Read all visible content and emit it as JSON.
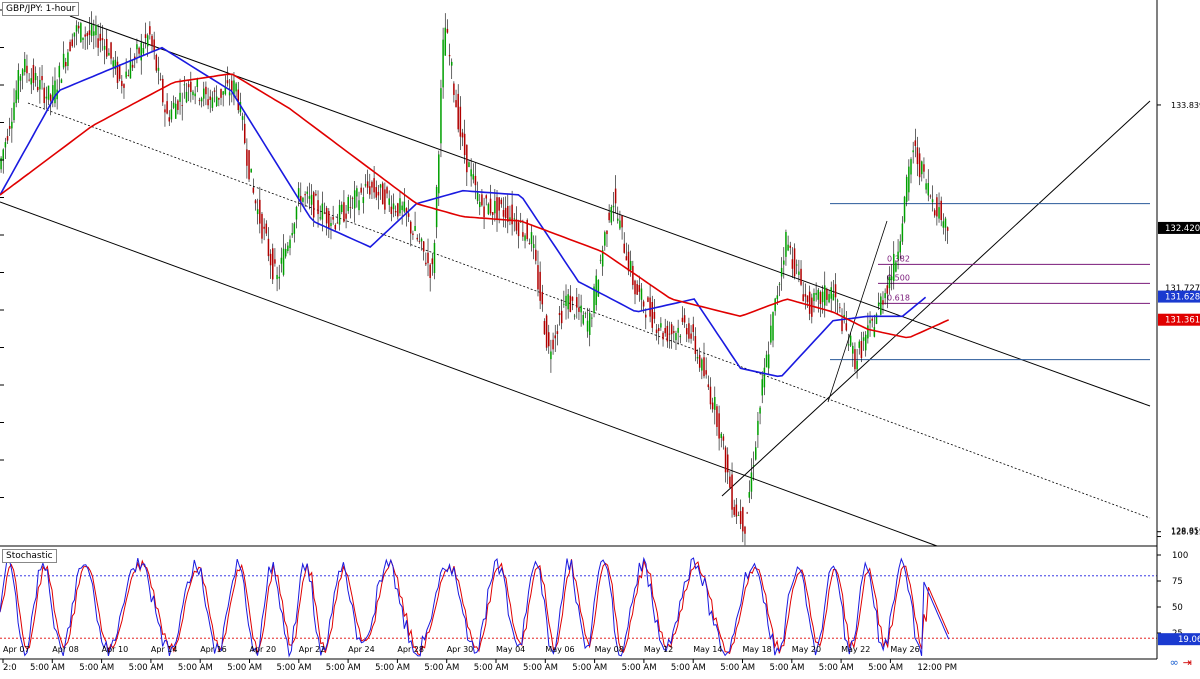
{
  "window": {
    "title": "GBP/JPY: 1-hour"
  },
  "oscillator": {
    "title": "Stochastic"
  },
  "colors": {
    "up": "#00a000",
    "down": "#b00000",
    "sma_blue": "#1a1ae0",
    "sma_red": "#e00000",
    "stoch_k": "#1a1ae0",
    "stoch_d": "#e00000",
    "fib": "#7a1a7a",
    "hline": "#2a5a9a",
    "tag_dark": "#000000",
    "tag_blue": "#1a3ad0",
    "tag_red": "#e00000"
  },
  "chart_data": [
    {
      "type": "candlestick",
      "title": "GBP/JPY: 1-hour",
      "ylim": [
        128.75,
        135.05
      ],
      "y_ticks": [
        "133.839",
        "128.915",
        "128.859"
      ],
      "price_tags": [
        {
          "label": "132.420",
          "value": 132.42,
          "style": "dark"
        },
        {
          "label": "131.727",
          "value": 131.727,
          "style": "plain"
        },
        {
          "label": "131.628",
          "value": 131.628,
          "style": "blue"
        },
        {
          "label": "131.361",
          "value": 131.361,
          "style": "red"
        }
      ],
      "x_ticks": [
        "Apr 07",
        "Apr 08",
        "Apr 10",
        "Apr 14",
        "Apr 16",
        "Apr 20",
        "Apr 22",
        "Apr 24",
        "Apr 28",
        "Apr 30",
        "May 04",
        "May 06",
        "May 08",
        "May 12",
        "May 14",
        "May 18",
        "May 20",
        "May 22",
        "May 26"
      ],
      "x_ticks_time": [
        "2:0",
        "5:00 AM",
        "5:00 AM",
        "5:00 AM",
        "5:00 AM",
        "5:00 AM",
        "5:00 AM",
        "5:00 AM",
        "5:00 AM",
        "5:00 AM",
        "5:00 AM",
        "5:00 AM",
        "5:00 AM",
        "5:00 AM",
        "5:00 AM",
        "5:00 AM",
        "5:00 AM",
        "5:00 AM",
        "5:00 AM",
        "12:00 PM"
      ],
      "price_path": [
        [
          0,
          133.1
        ],
        [
          0.02,
          134.3
        ],
        [
          0.045,
          133.9
        ],
        [
          0.065,
          134.7
        ],
        [
          0.09,
          134.6
        ],
        [
          0.105,
          134.1
        ],
        [
          0.13,
          134.65
        ],
        [
          0.145,
          133.7
        ],
        [
          0.165,
          134.1
        ],
        [
          0.18,
          133.9
        ],
        [
          0.205,
          134.05
        ],
        [
          0.22,
          132.8
        ],
        [
          0.24,
          131.8
        ],
        [
          0.26,
          132.8
        ],
        [
          0.29,
          132.5
        ],
        [
          0.32,
          132.9
        ],
        [
          0.35,
          132.6
        ],
        [
          0.375,
          131.9
        ],
        [
          0.385,
          134.8
        ],
        [
          0.4,
          133.4
        ],
        [
          0.415,
          132.7
        ],
        [
          0.44,
          132.6
        ],
        [
          0.46,
          132.3
        ],
        [
          0.475,
          131.0
        ],
        [
          0.49,
          131.6
        ],
        [
          0.51,
          131.3
        ],
        [
          0.53,
          132.8
        ],
        [
          0.55,
          131.7
        ],
        [
          0.575,
          131.2
        ],
        [
          0.595,
          131.3
        ],
        [
          0.62,
          130.3
        ],
        [
          0.635,
          129.2
        ],
        [
          0.645,
          129.0
        ],
        [
          0.66,
          130.6
        ],
        [
          0.68,
          132.3
        ],
        [
          0.7,
          131.5
        ],
        [
          0.72,
          131.7
        ],
        [
          0.74,
          130.9
        ],
        [
          0.755,
          131.3
        ],
        [
          0.775,
          132.05
        ],
        [
          0.79,
          133.35
        ],
        [
          0.805,
          132.8
        ],
        [
          0.82,
          132.42
        ]
      ],
      "series": [
        {
          "name": "",
          "color": "#1a1ae0",
          "values": [
            [
              0,
              132.8
            ],
            [
              0.05,
              134.0
            ],
            [
              0.14,
              134.5
            ],
            [
              0.2,
              134.0
            ],
            [
              0.27,
              132.5
            ],
            [
              0.32,
              132.2
            ],
            [
              0.36,
              132.7
            ],
            [
              0.4,
              132.85
            ],
            [
              0.45,
              132.8
            ],
            [
              0.5,
              131.8
            ],
            [
              0.55,
              131.45
            ],
            [
              0.6,
              131.6
            ],
            [
              0.64,
              130.8
            ],
            [
              0.675,
              130.7
            ],
            [
              0.72,
              131.35
            ],
            [
              0.75,
              131.4
            ],
            [
              0.78,
              131.4
            ],
            [
              0.8,
              131.62
            ]
          ]
        },
        {
          "name": "",
          "color": "#e00000",
          "values": [
            [
              0,
              132.8
            ],
            [
              0.08,
              133.6
            ],
            [
              0.15,
              134.1
            ],
            [
              0.2,
              134.2
            ],
            [
              0.25,
              133.8
            ],
            [
              0.3,
              133.3
            ],
            [
              0.36,
              132.7
            ],
            [
              0.4,
              132.55
            ],
            [
              0.45,
              132.5
            ],
            [
              0.52,
              132.15
            ],
            [
              0.58,
              131.6
            ],
            [
              0.64,
              131.4
            ],
            [
              0.68,
              131.6
            ],
            [
              0.72,
              131.45
            ],
            [
              0.75,
              131.25
            ],
            [
              0.785,
              131.15
            ],
            [
              0.82,
              131.36
            ]
          ]
        }
      ],
      "fibonacci": {
        "swing_high": 132.7,
        "swing_low": 130.9,
        "levels": [
          {
            "label": "0.382",
            "value": 132.0
          },
          {
            "label": "0.500",
            "value": 131.78
          },
          {
            "label": "0.618",
            "value": 131.55
          }
        ]
      },
      "stochastic": {
        "ylim": [
          0,
          100
        ],
        "y_ticks": [
          "100",
          "75",
          "50",
          "25"
        ],
        "levels": [
          80,
          20
        ],
        "last_label": "19.06",
        "last_value": 19.06
      }
    }
  ]
}
